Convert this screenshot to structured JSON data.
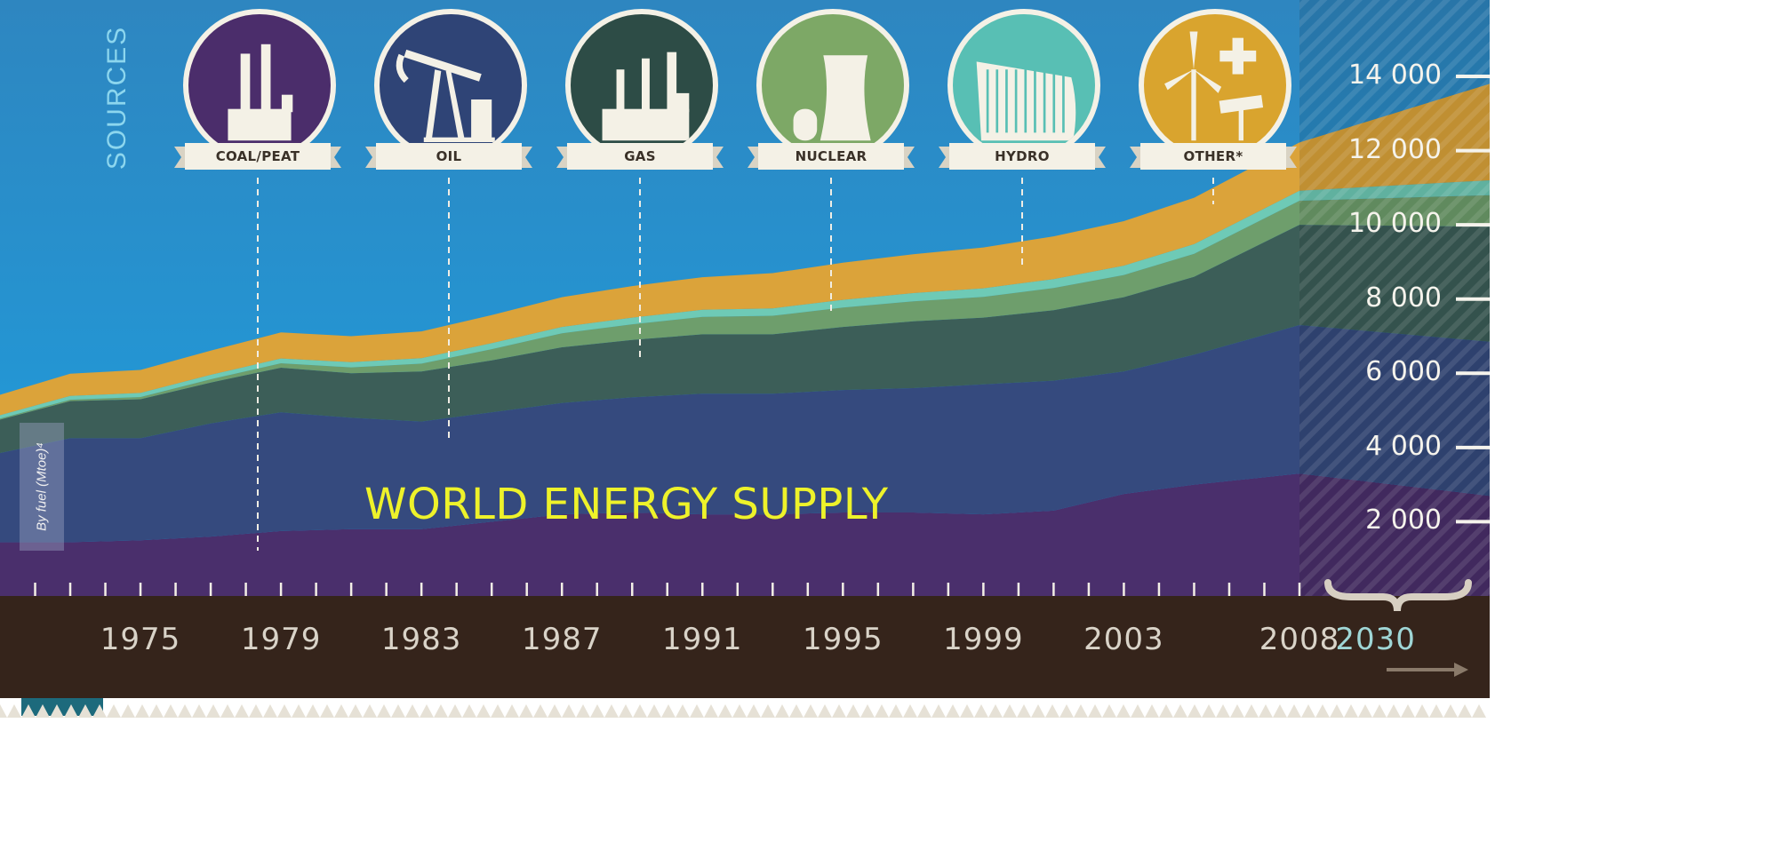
{
  "chart_data": {
    "type": "area",
    "title": "WORLD ENERGY SUPPLY",
    "ylabel": "By fuel (Mtoe)⁴",
    "section_label": "SOURCES",
    "x": [
      1971,
      1973,
      1975,
      1977,
      1979,
      1981,
      1983,
      1985,
      1987,
      1989,
      1991,
      1993,
      1995,
      1997,
      1999,
      2001,
      2003,
      2005,
      2008,
      2030
    ],
    "x_tick_labels": [
      "1975",
      "1979",
      "1983",
      "1987",
      "1991",
      "1995",
      "1999",
      "2003",
      "2008",
      "2030"
    ],
    "projection_label": "2030",
    "ylim": [
      0,
      14000
    ],
    "y_ticks": [
      2000,
      4000,
      6000,
      8000,
      10000,
      12000,
      14000
    ],
    "y_tick_labels": [
      "2 000",
      "4 000",
      "6 000",
      "8 000",
      "10 000",
      "12 000",
      "14 000"
    ],
    "series": [
      {
        "name": "COAL/PEAT",
        "color": "#4a2f6c",
        "values": [
          1450,
          1450,
          1500,
          1600,
          1750,
          1800,
          1800,
          2000,
          2200,
          2250,
          2200,
          2200,
          2250,
          2250,
          2200,
          2300,
          2750,
          3000,
          3300,
          2700
        ]
      },
      {
        "name": "OIL",
        "color": "#354a7e",
        "values": [
          2400,
          2800,
          2750,
          3050,
          3200,
          3000,
          2900,
          2950,
          3000,
          3100,
          3250,
          3250,
          3300,
          3350,
          3500,
          3500,
          3300,
          3500,
          4000,
          4150
        ]
      },
      {
        "name": "GAS",
        "color": "#3c5e58",
        "values": [
          900,
          1000,
          1050,
          1100,
          1200,
          1200,
          1350,
          1400,
          1500,
          1550,
          1600,
          1600,
          1700,
          1800,
          1800,
          1900,
          2000,
          2100,
          2700,
          3100
        ]
      },
      {
        "name": "NUCLEAR",
        "color": "#6e9e6c",
        "values": [
          30,
          40,
          60,
          90,
          120,
          160,
          210,
          300,
          380,
          420,
          470,
          500,
          520,
          540,
          560,
          600,
          600,
          620,
          650,
          850
        ]
      },
      {
        "name": "HYDRO",
        "color": "#6ecab6",
        "values": [
          90,
          100,
          110,
          120,
          130,
          140,
          150,
          160,
          170,
          180,
          190,
          200,
          210,
          220,
          230,
          240,
          250,
          260,
          270,
          400
        ]
      },
      {
        "name": "OTHER*",
        "color": "#dba33a",
        "values": [
          550,
          600,
          620,
          650,
          700,
          700,
          720,
          760,
          800,
          850,
          880,
          950,
          1000,
          1050,
          1100,
          1150,
          1200,
          1250,
          1300,
          2600
        ]
      }
    ]
  },
  "colors": {
    "sky_top": "#2e86c0",
    "sky_bottom": "#1e9ede",
    "ground": "#35241b",
    "title": "#eef22a"
  },
  "badges": [
    {
      "label": "COAL/PEAT",
      "icon": "power-plant-chimneys-icon",
      "color": "#4b2d6b"
    },
    {
      "label": "OIL",
      "icon": "oil-pump-jack-icon",
      "color": "#2f4476"
    },
    {
      "label": "GAS",
      "icon": "gas-plant-icon",
      "color": "#2d4c46"
    },
    {
      "label": "NUCLEAR",
      "icon": "cooling-tower-icon",
      "color": "#7da866"
    },
    {
      "label": "HYDRO",
      "icon": "dam-icon",
      "color": "#58bfb4"
    },
    {
      "label": "OTHER*",
      "icon": "wind-solar-plus-icon",
      "color": "#d9a42e"
    }
  ]
}
